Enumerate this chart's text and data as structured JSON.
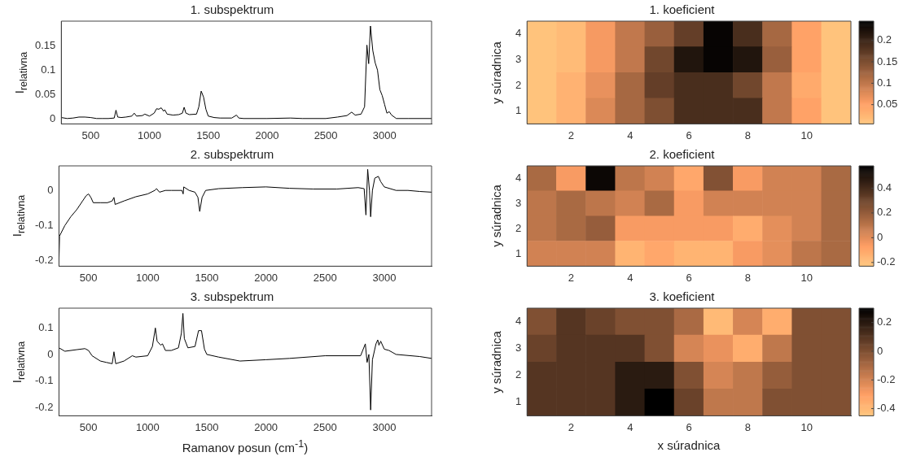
{
  "chart_data": [
    {
      "type": "line",
      "title": "1. subspektrum",
      "ylabel": "I$_{relativna}$",
      "color": "#000000",
      "xlim": [
        250,
        3400
      ],
      "xticks": [
        500,
        1000,
        1500,
        2000,
        2500,
        3000
      ],
      "ylim": [
        -0.01,
        0.2
      ],
      "yticks": [
        0,
        0.05,
        0.1,
        0.15
      ],
      "x": [
        250,
        300,
        350,
        400,
        450,
        500,
        550,
        600,
        650,
        700,
        715,
        730,
        760,
        800,
        850,
        870,
        890,
        940,
        960,
        1000,
        1040,
        1060,
        1080,
        1100,
        1120,
        1130,
        1150,
        1200,
        1250,
        1280,
        1295,
        1310,
        1340,
        1400,
        1420,
        1440,
        1460,
        1480,
        1500,
        1550,
        1600,
        1700,
        1740,
        1760,
        1800,
        2000,
        2200,
        2300,
        2500,
        2600,
        2680,
        2720,
        2750,
        2800,
        2830,
        2850,
        2865,
        2880,
        2900,
        2920,
        2940,
        2960,
        2980,
        3000,
        3020,
        3040,
        3060,
        3100,
        3200,
        3400
      ],
      "values": [
        0.003,
        0.001,
        0.002,
        0.004,
        0.004,
        0.003,
        0.001,
        0.001,
        0.001,
        0.002,
        0.018,
        0.004,
        0.003,
        0.004,
        0.006,
        0.012,
        0.006,
        0.007,
        0.01,
        0.006,
        0.012,
        0.021,
        0.02,
        0.023,
        0.016,
        0.019,
        0.01,
        0.008,
        0.009,
        0.012,
        0.024,
        0.012,
        0.009,
        0.01,
        0.025,
        0.057,
        0.045,
        0.02,
        0.006,
        0.003,
        0.002,
        0.002,
        0.008,
        0.002,
        0.001,
        0.001,
        0.002,
        0.001,
        0.001,
        0.004,
        0.007,
        0.014,
        0.008,
        0.01,
        0.025,
        0.151,
        0.113,
        0.19,
        0.14,
        0.115,
        0.1,
        0.06,
        0.048,
        0.03,
        0.012,
        0.015,
        0.008,
        0.001,
        0.001,
        0.001
      ]
    },
    {
      "type": "line",
      "title": "2. subspektrum",
      "ylabel": "I$_{relativna}$",
      "color": "#000000",
      "xlim": [
        250,
        3400
      ],
      "xticks": [
        500,
        1000,
        1500,
        2000,
        2500,
        3000
      ],
      "ylim": [
        -0.216,
        0.07
      ],
      "yticks": [
        -0.2,
        -0.1,
        0
      ],
      "x": [
        250,
        255,
        300,
        350,
        400,
        450,
        480,
        500,
        520,
        540,
        600,
        660,
        700,
        715,
        725,
        800,
        900,
        1000,
        1060,
        1075,
        1100,
        1150,
        1200,
        1290,
        1300,
        1305,
        1350,
        1400,
        1425,
        1440,
        1460,
        1490,
        1600,
        1800,
        2000,
        2200,
        2400,
        2600,
        2780,
        2830,
        2845,
        2860,
        2875,
        2885,
        2900,
        2920,
        2950,
        2970,
        3000,
        3100,
        3200,
        3300,
        3400
      ],
      "values": [
        -0.205,
        -0.13,
        -0.1,
        -0.075,
        -0.055,
        -0.03,
        -0.015,
        -0.01,
        -0.02,
        -0.035,
        -0.035,
        -0.035,
        -0.03,
        -0.02,
        -0.04,
        -0.03,
        -0.018,
        -0.01,
        0,
        0.005,
        -0.005,
        0,
        0,
        0,
        -0.01,
        0.01,
        0,
        -0.005,
        -0.02,
        -0.06,
        -0.02,
        0,
        0.005,
        0.008,
        0.01,
        0.006,
        0.004,
        0.004,
        0.008,
        0.005,
        -0.07,
        0.06,
        0,
        -0.075,
        0,
        0.035,
        0.04,
        0.025,
        0.01,
        0,
        0,
        -0.003,
        -0.005
      ]
    },
    {
      "type": "line",
      "title": "3. subspektrum",
      "ylabel": "I$_{relativna}$",
      "xlabel": "Ramanov posun (cm$^{-1}$)",
      "color": "#000000",
      "xlim": [
        250,
        3400
      ],
      "xticks": [
        500,
        1000,
        1500,
        2000,
        2500,
        3000
      ],
      "ylim": [
        -0.232,
        0.175
      ],
      "yticks": [
        -0.2,
        -0.1,
        0,
        0.1
      ],
      "x": [
        250,
        300,
        400,
        470,
        500,
        530,
        600,
        650,
        700,
        715,
        730,
        800,
        870,
        900,
        1000,
        1040,
        1065,
        1080,
        1110,
        1125,
        1150,
        1200,
        1260,
        1285,
        1298,
        1310,
        1340,
        1400,
        1430,
        1455,
        1480,
        1500,
        1600,
        1780,
        2000,
        2200,
        2500,
        2800,
        2840,
        2855,
        2870,
        2885,
        2900,
        2930,
        2945,
        2955,
        2970,
        3000,
        3040,
        3100,
        3300,
        3400
      ],
      "values": [
        0.025,
        0.012,
        0.018,
        0.022,
        0.015,
        -0.005,
        -0.025,
        -0.03,
        -0.035,
        0.01,
        -0.035,
        -0.025,
        -0.005,
        -0.01,
        -0.005,
        0.03,
        0.1,
        0.05,
        0.035,
        0.04,
        0.015,
        0.015,
        0.025,
        0.08,
        0.155,
        0.06,
        0.025,
        0.03,
        0.09,
        0.09,
        0.02,
        0,
        -0.01,
        -0.025,
        -0.02,
        -0.015,
        -0.005,
        -0.005,
        0.04,
        -0.03,
        0,
        -0.21,
        -0.02,
        0.04,
        0.055,
        0.035,
        0.05,
        0.02,
        0.015,
        0,
        -0.008,
        -0.015
      ]
    },
    {
      "type": "heatmap",
      "title": "1. koeficient",
      "ylabel": "y súradnica",
      "categories": [
        null,
        "2",
        null,
        "4",
        null,
        "6",
        null,
        "8",
        null,
        "10",
        null
      ],
      "y_categories": [
        "4",
        "3",
        "2",
        "1"
      ],
      "clim": [
        0.005,
        0.245
      ],
      "cticks": [
        0.05,
        0.1,
        0.15,
        0.2
      ],
      "cells": [
        [
          0.01,
          0.02,
          0.06,
          0.1,
          0.13,
          0.17,
          0.24,
          0.19,
          0.12,
          0.05,
          0.01
        ],
        [
          0.01,
          0.02,
          0.06,
          0.1,
          0.16,
          0.22,
          0.24,
          0.22,
          0.13,
          0.05,
          0.01
        ],
        [
          0.01,
          0.03,
          0.07,
          0.12,
          0.17,
          0.19,
          0.19,
          0.16,
          0.1,
          0.04,
          0.01
        ],
        [
          0.01,
          0.03,
          0.08,
          0.12,
          0.15,
          0.19,
          0.19,
          0.19,
          0.1,
          0.05,
          0.01
        ]
      ]
    },
    {
      "type": "heatmap",
      "title": "2. koeficient",
      "ylabel": "y súradnica",
      "categories": [
        null,
        "2",
        null,
        "4",
        null,
        "6",
        null,
        "8",
        null,
        "10",
        null
      ],
      "y_categories": [
        "4",
        "3",
        "2",
        "1"
      ],
      "clim": [
        -0.23,
        0.58
      ],
      "cticks": [
        -0.2,
        0,
        0.2,
        0.4
      ],
      "cells": [
        [
          0.15,
          -0.05,
          0.55,
          0.1,
          0.05,
          -0.1,
          0.25,
          -0.05,
          0.05,
          0.05,
          0.15
        ],
        [
          0.1,
          0.15,
          0.1,
          0.05,
          0.15,
          -0.05,
          0.05,
          0.05,
          0.05,
          0.05,
          0.15
        ],
        [
          0.1,
          0.15,
          0.2,
          -0.05,
          -0.05,
          -0.05,
          -0.05,
          -0.12,
          0,
          0.05,
          0.15
        ],
        [
          0.05,
          0.05,
          0.05,
          -0.15,
          -0.1,
          -0.15,
          -0.15,
          -0.05,
          0,
          0.1,
          0.15
        ]
      ]
    },
    {
      "type": "heatmap",
      "title": "3. koeficient",
      "ylabel": "y súradnica",
      "xlabel": "x súradnica",
      "categories": [
        null,
        "2",
        null,
        "4",
        null,
        "6",
        null,
        "8",
        null,
        "10",
        null
      ],
      "y_categories": [
        "4",
        "3",
        "2",
        "1"
      ],
      "clim": [
        -0.45,
        0.3
      ],
      "cticks": [
        -0.4,
        -0.2,
        0,
        0.2
      ],
      "cells": [
        [
          0,
          0.1,
          0.05,
          0,
          0,
          -0.1,
          -0.4,
          -0.2,
          -0.35,
          0,
          0
        ],
        [
          0.05,
          0.1,
          0.1,
          0.1,
          0,
          -0.2,
          -0.25,
          -0.35,
          -0.15,
          0,
          0
        ],
        [
          0.1,
          0.1,
          0.1,
          0.2,
          0.2,
          0,
          -0.2,
          -0.15,
          -0.05,
          0,
          0
        ],
        [
          0.1,
          0.1,
          0.1,
          0.2,
          0.3,
          0.05,
          -0.15,
          -0.15,
          0,
          0,
          0
        ]
      ]
    }
  ]
}
